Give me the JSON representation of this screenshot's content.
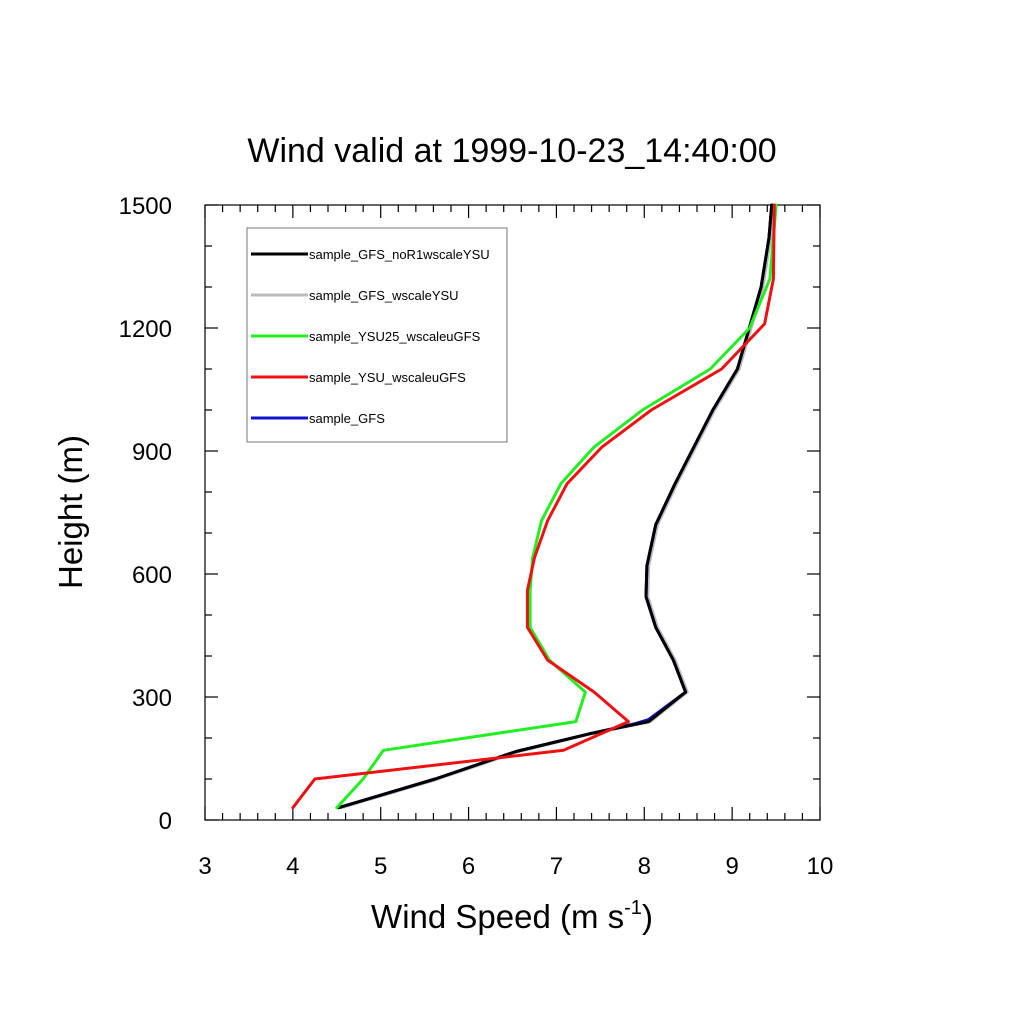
{
  "chart_data": {
    "type": "line",
    "title": "Wind valid at 1999-10-23_14:40:00",
    "xlabel": "Wind Speed (m s",
    "xlabel_sup": "-1",
    "xlabel_tail": ")",
    "ylabel": "Height (m)",
    "xlim": [
      3,
      10
    ],
    "ylim": [
      0,
      1500
    ],
    "xticks": [
      "3",
      "4",
      "5",
      "6",
      "7",
      "8",
      "9",
      "10"
    ],
    "yticks": [
      "0",
      "300",
      "600",
      "900",
      "1200",
      "1500"
    ],
    "legend_position": "top-left",
    "series": [
      {
        "name": "sample_GFS_noR1wscaleYSU",
        "color": "#000000",
        "points": [
          [
            4.52,
            30
          ],
          [
            5.62,
            100
          ],
          [
            6.54,
            167
          ],
          [
            7.37,
            210
          ],
          [
            8.05,
            240
          ],
          [
            8.47,
            312
          ],
          [
            8.33,
            390
          ],
          [
            8.13,
            470
          ],
          [
            8.02,
            545
          ],
          [
            8.03,
            620
          ],
          [
            8.13,
            720
          ],
          [
            8.35,
            820
          ],
          [
            8.78,
            1000
          ],
          [
            9.06,
            1100
          ],
          [
            9.33,
            1300
          ],
          [
            9.42,
            1420
          ],
          [
            9.45,
            1500
          ]
        ]
      },
      {
        "name": "sample_GFS_wscaleYSU",
        "color": "#bbbbbb",
        "points": [
          [
            4.55,
            30
          ],
          [
            5.65,
            100
          ],
          [
            6.57,
            167
          ],
          [
            7.39,
            210
          ],
          [
            8.07,
            240
          ],
          [
            8.49,
            312
          ],
          [
            8.35,
            390
          ],
          [
            8.15,
            470
          ],
          [
            8.04,
            545
          ],
          [
            8.05,
            620
          ],
          [
            8.15,
            720
          ],
          [
            8.37,
            820
          ],
          [
            8.8,
            1000
          ],
          [
            9.08,
            1100
          ],
          [
            9.35,
            1300
          ],
          [
            9.44,
            1420
          ],
          [
            9.47,
            1500
          ]
        ]
      },
      {
        "name": "sample_YSU25_wscaleuGFS",
        "color": "#22ee22",
        "points": [
          [
            4.5,
            30
          ],
          [
            4.8,
            100
          ],
          [
            5.03,
            170
          ],
          [
            7.22,
            240
          ],
          [
            7.33,
            312
          ],
          [
            6.92,
            390
          ],
          [
            6.7,
            470
          ],
          [
            6.7,
            560
          ],
          [
            6.73,
            640
          ],
          [
            6.83,
            730
          ],
          [
            7.05,
            820
          ],
          [
            7.43,
            910
          ],
          [
            7.98,
            1000
          ],
          [
            8.75,
            1100
          ],
          [
            9.2,
            1200
          ],
          [
            9.43,
            1320
          ],
          [
            9.5,
            1500
          ]
        ]
      },
      {
        "name": "sample_YSU_wscaleuGFS",
        "color": "#ee1111",
        "points": [
          [
            4.0,
            30
          ],
          [
            4.25,
            100
          ],
          [
            7.08,
            170
          ],
          [
            7.82,
            240
          ],
          [
            7.43,
            312
          ],
          [
            6.9,
            390
          ],
          [
            6.67,
            470
          ],
          [
            6.67,
            560
          ],
          [
            6.75,
            640
          ],
          [
            6.9,
            730
          ],
          [
            7.12,
            820
          ],
          [
            7.52,
            910
          ],
          [
            8.08,
            1000
          ],
          [
            8.88,
            1100
          ],
          [
            9.37,
            1210
          ],
          [
            9.47,
            1320
          ],
          [
            9.48,
            1500
          ]
        ]
      },
      {
        "name": "sample_GFS",
        "color": "#1111cc",
        "points": [
          [
            4.52,
            30
          ],
          [
            5.62,
            100
          ],
          [
            6.54,
            167
          ],
          [
            7.37,
            210
          ],
          [
            7.9,
            235
          ],
          [
            8.05,
            245
          ],
          [
            8.47,
            312
          ],
          [
            8.33,
            390
          ],
          [
            8.13,
            470
          ],
          [
            8.02,
            545
          ],
          [
            8.03,
            620
          ],
          [
            8.13,
            720
          ],
          [
            8.35,
            820
          ],
          [
            8.78,
            1000
          ],
          [
            9.06,
            1100
          ],
          [
            9.33,
            1300
          ],
          [
            9.42,
            1420
          ],
          [
            9.45,
            1500
          ]
        ]
      }
    ]
  }
}
